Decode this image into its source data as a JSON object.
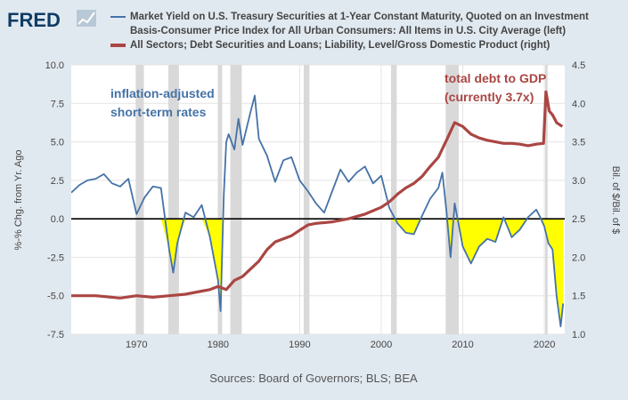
{
  "logo": {
    "text": "FRED"
  },
  "legend": [
    {
      "label_lines": [
        "Market Yield on U.S. Treasury Securities at 1-Year Constant Maturity, Quoted on an Investment",
        "Basis-Consumer Price Index for All Urban Consumers: All Items in U.S. City Average (left)"
      ],
      "color": "#4572a7"
    },
    {
      "label_lines": [
        "All Sectors; Debt Securities and Loans; Liability, Level/Gross Domestic Product (right)"
      ],
      "color": "#aa4643"
    }
  ],
  "annotations": {
    "left": [
      "inflation-adjusted",
      "short-term rates"
    ],
    "right": [
      "total debt to GDP",
      "(currently 3.7x)"
    ]
  },
  "source_text": "Sources: Board of Governors; BLS; BEA",
  "chart_data": {
    "type": "line",
    "xlim": [
      1962,
      2022.5
    ],
    "x_ticks": [
      1970,
      1980,
      1990,
      2000,
      2010,
      2020
    ],
    "ylim_left": [
      -7.5,
      10
    ],
    "yticks_left": [
      "-7.5",
      "-5.0",
      "-2.5",
      "0.0",
      "2.5",
      "5.0",
      "7.5",
      "10.0"
    ],
    "ylabel_left": "%-% Chg. from Yr. Ago",
    "ylim_right": [
      1.0,
      4.5
    ],
    "yticks_right": [
      "1.0",
      "1.5",
      "2.0",
      "2.5",
      "3.0",
      "3.5",
      "4.0",
      "4.5"
    ],
    "ylabel_right": "Bil. of $/Bil. of $",
    "grid": true,
    "zero_line": true,
    "negative_fill_color": "#ffff00",
    "recessions": [
      [
        1969.9,
        1970.9
      ],
      [
        1973.9,
        1975.2
      ],
      [
        1980.0,
        1980.5
      ],
      [
        1981.5,
        1982.9
      ],
      [
        1990.5,
        1991.2
      ],
      [
        2001.2,
        2001.9
      ],
      [
        2007.9,
        2009.5
      ],
      [
        2020.1,
        2020.4
      ]
    ],
    "series": [
      {
        "axis": "left",
        "color": "#4572a7",
        "points": [
          [
            1962,
            1.7
          ],
          [
            1963,
            2.2
          ],
          [
            1964,
            2.5
          ],
          [
            1965,
            2.6
          ],
          [
            1966,
            2.9
          ],
          [
            1967,
            2.3
          ],
          [
            1968,
            2.1
          ],
          [
            1969,
            2.6
          ],
          [
            1970,
            0.3
          ],
          [
            1971,
            1.4
          ],
          [
            1972,
            2.1
          ],
          [
            1973,
            2.0
          ],
          [
            1974,
            -2.0
          ],
          [
            1974.5,
            -3.5
          ],
          [
            1975,
            -1.6
          ],
          [
            1976,
            0.4
          ],
          [
            1977,
            0.1
          ],
          [
            1978,
            0.9
          ],
          [
            1979,
            -1.2
          ],
          [
            1980,
            -4.0
          ],
          [
            1980.3,
            -6.0
          ],
          [
            1980.7,
            1.5
          ],
          [
            1981,
            5.0
          ],
          [
            1981.3,
            5.5
          ],
          [
            1982,
            4.5
          ],
          [
            1982.5,
            6.5
          ],
          [
            1983,
            4.8
          ],
          [
            1984,
            7.0
          ],
          [
            1984.5,
            8.0
          ],
          [
            1985,
            5.2
          ],
          [
            1986,
            4.1
          ],
          [
            1987,
            2.4
          ],
          [
            1988,
            3.8
          ],
          [
            1989,
            4.0
          ],
          [
            1990,
            2.5
          ],
          [
            1991,
            1.8
          ],
          [
            1992,
            1.0
          ],
          [
            1993,
            0.4
          ],
          [
            1994,
            1.8
          ],
          [
            1995,
            3.2
          ],
          [
            1996,
            2.4
          ],
          [
            1997,
            3.0
          ],
          [
            1998,
            3.4
          ],
          [
            1999,
            2.3
          ],
          [
            2000,
            2.8
          ],
          [
            2001,
            0.7
          ],
          [
            2002,
            -0.3
          ],
          [
            2003,
            -0.9
          ],
          [
            2004,
            -1.0
          ],
          [
            2005,
            0.2
          ],
          [
            2006,
            1.3
          ],
          [
            2007,
            2.0
          ],
          [
            2007.5,
            3.0
          ],
          [
            2008,
            0.5
          ],
          [
            2008.5,
            -2.5
          ],
          [
            2009,
            1.0
          ],
          [
            2009.5,
            -0.4
          ],
          [
            2010,
            -1.8
          ],
          [
            2011,
            -2.9
          ],
          [
            2012,
            -1.8
          ],
          [
            2013,
            -1.3
          ],
          [
            2014,
            -1.5
          ],
          [
            2015,
            0.1
          ],
          [
            2016,
            -1.2
          ],
          [
            2017,
            -0.7
          ],
          [
            2018,
            0.1
          ],
          [
            2019,
            0.6
          ],
          [
            2019.5,
            0.1
          ],
          [
            2020,
            -0.5
          ],
          [
            2020.5,
            -1.6
          ],
          [
            2021,
            -2.0
          ],
          [
            2021.5,
            -5.0
          ],
          [
            2022,
            -7.0
          ],
          [
            2022.3,
            -5.5
          ]
        ]
      },
      {
        "axis": "right",
        "color": "#aa4643",
        "points": [
          [
            1962,
            1.5
          ],
          [
            1965,
            1.5
          ],
          [
            1968,
            1.47
          ],
          [
            1970,
            1.5
          ],
          [
            1972,
            1.48
          ],
          [
            1974,
            1.5
          ],
          [
            1976,
            1.52
          ],
          [
            1978,
            1.56
          ],
          [
            1979,
            1.58
          ],
          [
            1980,
            1.62
          ],
          [
            1981,
            1.58
          ],
          [
            1982,
            1.7
          ],
          [
            1983,
            1.75
          ],
          [
            1985,
            1.95
          ],
          [
            1986,
            2.1
          ],
          [
            1987,
            2.2
          ],
          [
            1989,
            2.28
          ],
          [
            1990,
            2.35
          ],
          [
            1991,
            2.42
          ],
          [
            1992,
            2.44
          ],
          [
            1994,
            2.46
          ],
          [
            1996,
            2.5
          ],
          [
            1998,
            2.56
          ],
          [
            2000,
            2.65
          ],
          [
            2001,
            2.72
          ],
          [
            2002,
            2.82
          ],
          [
            2003,
            2.9
          ],
          [
            2004,
            2.96
          ],
          [
            2005,
            3.05
          ],
          [
            2006,
            3.18
          ],
          [
            2007,
            3.3
          ],
          [
            2008,
            3.52
          ],
          [
            2009,
            3.75
          ],
          [
            2010,
            3.7
          ],
          [
            2011,
            3.6
          ],
          [
            2012,
            3.55
          ],
          [
            2013,
            3.52
          ],
          [
            2014,
            3.5
          ],
          [
            2015,
            3.48
          ],
          [
            2016,
            3.48
          ],
          [
            2017,
            3.47
          ],
          [
            2018,
            3.45
          ],
          [
            2019,
            3.47
          ],
          [
            2019.9,
            3.48
          ],
          [
            2020.2,
            4.15
          ],
          [
            2020.6,
            3.9
          ],
          [
            2021,
            3.85
          ],
          [
            2021.5,
            3.75
          ],
          [
            2022.2,
            3.7
          ]
        ]
      }
    ]
  }
}
